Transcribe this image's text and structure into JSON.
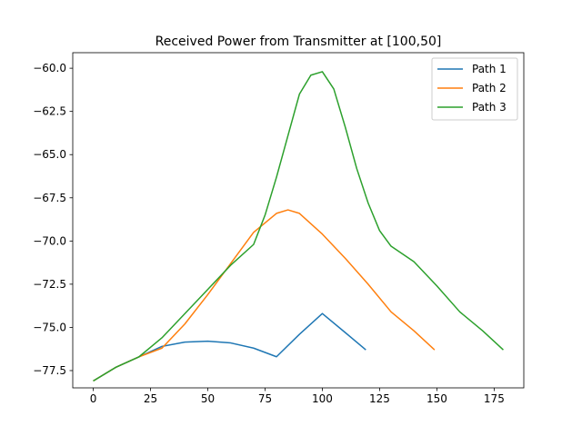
{
  "chart_data": {
    "type": "line",
    "title": "Received Power from Transmitter at [100,50]",
    "xlabel": "",
    "ylabel": "",
    "xlim": [
      -8.95,
      187.95
    ],
    "ylim": [
      -78.5,
      -59.1
    ],
    "xticks": [
      0,
      25,
      50,
      75,
      100,
      125,
      150,
      175
    ],
    "xtick_labels": [
      "0",
      "25",
      "50",
      "75",
      "100",
      "125",
      "150",
      "175"
    ],
    "yticks": [
      -77.5,
      -75.0,
      -72.5,
      -70.0,
      -67.5,
      -65.0,
      -62.5,
      -60.0
    ],
    "ytick_labels": [
      "−77.5",
      "−75.0",
      "−72.5",
      "−70.0",
      "−67.5",
      "−65.0",
      "−62.5",
      "−60.0"
    ],
    "grid": false,
    "legend": "top-right",
    "series": [
      {
        "name": "Path 1",
        "color": "#1f77b4",
        "x": [
          0,
          10,
          20,
          30,
          40,
          50,
          60,
          70,
          80,
          90,
          100,
          110,
          119
        ],
        "y": [
          -78.1,
          -77.3,
          -76.7,
          -76.1,
          -75.85,
          -75.8,
          -75.9,
          -76.2,
          -76.7,
          -75.4,
          -74.2,
          -75.3,
          -76.3
        ]
      },
      {
        "name": "Path 2",
        "color": "#ff7f0e",
        "x": [
          0,
          10,
          20,
          30,
          40,
          50,
          60,
          70,
          80,
          85,
          90,
          100,
          110,
          120,
          130,
          140,
          149
        ],
        "y": [
          -78.1,
          -77.3,
          -76.7,
          -76.2,
          -74.8,
          -73.1,
          -71.3,
          -69.5,
          -68.4,
          -68.2,
          -68.4,
          -69.6,
          -71.0,
          -72.5,
          -74.1,
          -75.2,
          -76.3
        ]
      },
      {
        "name": "Path 3",
        "color": "#2ca02c",
        "x": [
          0,
          10,
          20,
          30,
          40,
          50,
          60,
          70,
          75,
          80,
          85,
          90,
          95,
          100,
          105,
          110,
          115,
          120,
          125,
          130,
          140,
          150,
          160,
          170,
          179
        ],
        "y": [
          -78.1,
          -77.3,
          -76.7,
          -75.6,
          -74.2,
          -72.8,
          -71.4,
          -70.2,
          -68.5,
          -66.3,
          -63.9,
          -61.5,
          -60.4,
          -60.2,
          -61.2,
          -63.4,
          -65.8,
          -67.8,
          -69.4,
          -70.3,
          -71.2,
          -72.6,
          -74.1,
          -75.2,
          -76.3
        ]
      }
    ]
  }
}
